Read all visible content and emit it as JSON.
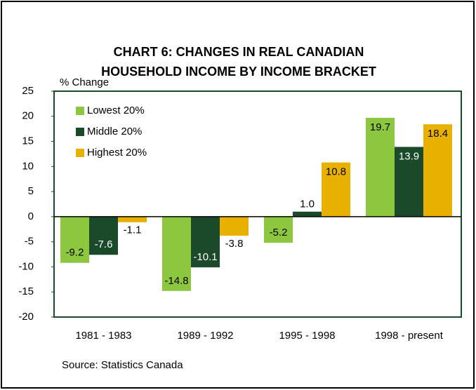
{
  "chart_data": {
    "type": "bar",
    "title_lines": [
      "CHART 6: CHANGES IN REAL CANADIAN",
      "HOUSEHOLD INCOME BY INCOME BRACKET"
    ],
    "y_label": "% Change",
    "source": "Source: Statistics Canada",
    "categories": [
      "1981 - 1983",
      "1989 - 1992",
      "1995 - 1998",
      "1998 - present"
    ],
    "series": [
      {
        "name": "Lowest 20%",
        "color": "#8dc63f",
        "values": [
          -9.2,
          -14.8,
          -5.2,
          19.7
        ]
      },
      {
        "name": "Middle 20%",
        "color": "#1b4a2a",
        "values": [
          -7.6,
          -10.1,
          1.0,
          13.9
        ],
        "value_labels": [
          "-7.6",
          "-10.1",
          "1.0",
          "13.9"
        ]
      },
      {
        "name": "Highest 20%",
        "color": "#e8b000",
        "values": [
          -1.1,
          -3.8,
          10.8,
          18.4
        ]
      }
    ],
    "ylim": [
      -20,
      25
    ],
    "yticks": [
      -20,
      -15,
      -10,
      -5,
      0,
      5,
      10,
      15,
      20,
      25
    ],
    "legend": "upper left"
  }
}
